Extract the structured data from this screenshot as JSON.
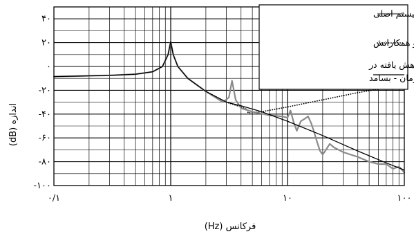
{
  "chart_data": {
    "type": "line",
    "title": "",
    "xlabel": "فرکانس (Hz)",
    "ylabel": "اندازه (dB)",
    "xscale": "log",
    "xlim": [
      0.1,
      100
    ],
    "ylim": [
      -100,
      50
    ],
    "grid": true,
    "legend_position": "top-right",
    "x_ticks": [
      {
        "value": 0.1,
        "label": "۰/۱"
      },
      {
        "value": 1,
        "label": "۱"
      },
      {
        "value": 10,
        "label": "۱۰"
      },
      {
        "value": 100,
        "label": "۱۰۰"
      }
    ],
    "y_ticks": [
      {
        "value": 40,
        "label": "۴۰"
      },
      {
        "value": 20,
        "label": "۲۰"
      },
      {
        "value": 0,
        "label": "۰"
      },
      {
        "value": -20,
        "label": "-۲۰"
      },
      {
        "value": -40,
        "label": "-۴۰"
      },
      {
        "value": -60,
        "label": "-۶۰"
      },
      {
        "value": -80,
        "label": "-۸۰"
      },
      {
        "value": -100,
        "label": "-۱۰۰"
      }
    ],
    "series": [
      {
        "name": "سیستم اصلی",
        "style": "solid",
        "color": "#8a8a8a",
        "x": [
          0.1,
          0.3,
          0.5,
          0.7,
          0.85,
          0.95,
          1.0,
          1.05,
          1.15,
          1.4,
          2.0,
          2.8,
          3.15,
          3.35,
          3.6,
          4.0,
          5.0,
          7.0,
          9.0,
          10.0,
          10.6,
          11.3,
          12.0,
          13.0,
          14.0,
          15.0,
          16.0,
          17.0,
          18.0,
          19.0,
          20.0,
          21.0,
          23.0,
          25.0,
          30.0,
          40.0,
          50.0,
          60.0,
          70.0,
          80.0,
          90.0,
          100.0
        ],
        "y": [
          -8.5,
          -7.5,
          -6.5,
          -4.5,
          0,
          10,
          21,
          10,
          0,
          -10,
          -21,
          -30,
          -26,
          -12,
          -28,
          -35,
          -38,
          -41,
          -42,
          -43,
          -37,
          -47,
          -54,
          -46,
          -44,
          -42,
          -48,
          -56,
          -64,
          -71,
          -74,
          -71,
          -65,
          -68,
          -72,
          -76,
          -80,
          -82,
          -82,
          -86,
          -84,
          -89
        ]
      },
      {
        "name": "مدل دایک و همکارانش",
        "style": "dotted",
        "color": "#000000",
        "x": [
          0.1,
          0.3,
          0.5,
          0.7,
          0.85,
          0.95,
          1.0,
          1.05,
          1.15,
          1.4,
          2.0,
          3.0,
          4.0,
          4.5,
          4.6,
          6.0,
          10.0,
          20.0,
          40.0,
          70.0,
          100.0
        ],
        "y": [
          -8.5,
          -7.5,
          -6.5,
          -4.5,
          0,
          10,
          21,
          10,
          0,
          -10,
          -21,
          -30,
          -34,
          -36,
          -39,
          -38,
          -34,
          -28,
          -22,
          -18,
          -16
        ]
      },
      {
        "name": "مدل کاهش یافته در محدوده زمان - بسامد",
        "style": "solid",
        "color": "#000000",
        "x": [
          0.1,
          0.3,
          0.5,
          0.7,
          0.85,
          0.95,
          1.0,
          1.05,
          1.15,
          1.4,
          2.0,
          3.0,
          4.0,
          6.0,
          10.0,
          20.0,
          40.0,
          70.0,
          100.0
        ],
        "y": [
          -8.5,
          -7.5,
          -6.5,
          -4.5,
          0,
          10,
          21,
          10,
          0,
          -10,
          -21,
          -30,
          -33,
          -38,
          -46,
          -58,
          -71,
          -81,
          -87
        ]
      }
    ],
    "legend_lines": [
      [
        "سیستم اصلی"
      ],
      [
        "مدل دایک و همکارانش"
      ],
      [
        "مدل کاهش یافته در",
        "محدوده زمان - بسامد"
      ]
    ]
  }
}
